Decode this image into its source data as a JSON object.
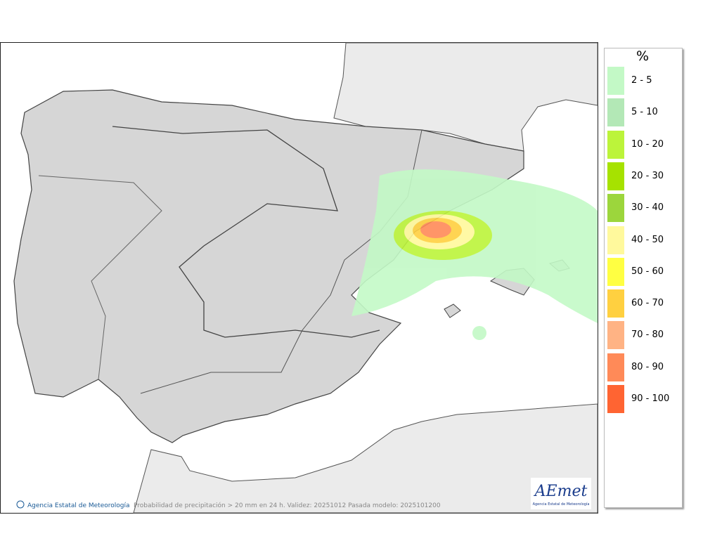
{
  "map": {
    "credit": "Agencia Estatal de Meteorología",
    "caption": "Probabilidad de precipitación > 20 mm en 24 h. Validez: 20251012 Pasada modelo: 2025101200",
    "logo": {
      "name": "AEmet",
      "subtitle": "Agencia Estatal de Meteorología"
    }
  },
  "legend": {
    "title": "%",
    "items": [
      {
        "label": "2 - 5",
        "color": "#c3f9c6"
      },
      {
        "label": "5 - 10",
        "color": "#b3e8b6"
      },
      {
        "label": "10 - 20",
        "color": "#bcf43a"
      },
      {
        "label": "20 - 30",
        "color": "#a6e200"
      },
      {
        "label": "30 - 40",
        "color": "#9cd63c"
      },
      {
        "label": "40 - 50",
        "color": "#fff99c"
      },
      {
        "label": "50 - 60",
        "color": "#ffff42"
      },
      {
        "label": "60 - 70",
        "color": "#ffd040"
      },
      {
        "label": "70 - 80",
        "color": "#ffb384"
      },
      {
        "label": "80 - 90",
        "color": "#ff8a58"
      },
      {
        "label": "90 - 100",
        "color": "#ff6432"
      }
    ]
  }
}
